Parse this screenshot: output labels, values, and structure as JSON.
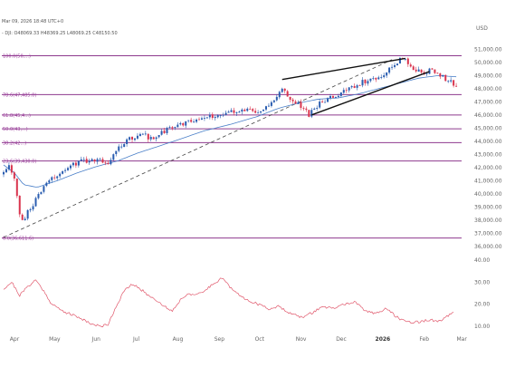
{
  "header": {
    "timestamp": "Mar 09, 2026 18:48 UTC+0",
    "ohlc": "- DJI: O48069.33 H48369.25 L48069.25 C48150.50"
  },
  "colors": {
    "up": "#2a5db0",
    "down": "#d9334d",
    "fib": "#8e3a8e",
    "ma": "#4a7fc8",
    "oscillator": "#e0566a",
    "wedge": "#111111",
    "trend": "#444444"
  },
  "chart_data": [
    {
      "type": "candlestick",
      "title": "",
      "ylabel": "USD",
      "ylim": [
        36000,
        51500
      ],
      "y_ticks": [
        51000,
        50000,
        49000,
        48000,
        47000,
        46000,
        45000,
        44000,
        43000,
        42000,
        41000,
        40000,
        39000,
        38000,
        37000,
        36000
      ],
      "y_tick_labels": [
        "51,000.00",
        "50,000.00",
        "49,000.00",
        "48,000.00",
        "47,000.00",
        "46,000.00",
        "45,000.00",
        "44,000.00",
        "43,000.00",
        "42,000.00",
        "41,000.00",
        "40,000.00",
        "39,000.00",
        "38,000.00",
        "37,000.00",
        "36,000.00"
      ],
      "x_labels": [
        {
          "label": "Apr",
          "day": 0
        },
        {
          "label": "May",
          "day": 30
        },
        {
          "label": "Jun",
          "day": 61
        },
        {
          "label": "Jul",
          "day": 91
        },
        {
          "label": "Aug",
          "day": 122
        },
        {
          "label": "Sep",
          "day": 153
        },
        {
          "label": "Oct",
          "day": 183
        },
        {
          "label": "Nov",
          "day": 214
        },
        {
          "label": "Dec",
          "day": 244
        },
        {
          "label": "2026",
          "day": 275,
          "bold": true
        },
        {
          "label": "Feb",
          "day": 306
        },
        {
          "label": "Mar",
          "day": 334
        }
      ],
      "fib_levels": [
        {
          "label": "100.0(50,...)",
          "value": 50500
        },
        {
          "label": "78.6(47,485.0)",
          "value": 47550
        },
        {
          "label": "61.8(45,4...)",
          "value": 46000
        },
        {
          "label": "50.0(43,...)",
          "value": 44950
        },
        {
          "label": "38.2(42...)",
          "value": 43900
        },
        {
          "label": "23.6(39,430.0)",
          "value": 42500
        },
        {
          "label": "0.0(36,611.6)",
          "value": 36650
        }
      ],
      "trend_line": [
        [
          0,
          36700
        ],
        [
          290,
          50200
        ]
      ],
      "wedge_upper": [
        [
          208,
          48700
        ],
        [
          300,
          50300
        ]
      ],
      "wedge_lower": [
        [
          230,
          46000
        ],
        [
          318,
          49300
        ]
      ],
      "ma_keypoints": [
        [
          0,
          42200
        ],
        [
          8,
          41600
        ],
        [
          15,
          40700
        ],
        [
          25,
          40500
        ],
        [
          40,
          41000
        ],
        [
          55,
          41600
        ],
        [
          70,
          42100
        ],
        [
          85,
          42500
        ],
        [
          100,
          43100
        ],
        [
          115,
          43600
        ],
        [
          130,
          44100
        ],
        [
          150,
          44800
        ],
        [
          170,
          45300
        ],
        [
          190,
          45900
        ],
        [
          205,
          46500
        ],
        [
          220,
          46900
        ],
        [
          235,
          47200
        ],
        [
          250,
          47300
        ],
        [
          265,
          47600
        ],
        [
          280,
          48000
        ],
        [
          295,
          48400
        ],
        [
          310,
          48800
        ],
        [
          325,
          49000
        ],
        [
          338,
          48900
        ]
      ],
      "price_keypoints": [
        [
          0,
          41500
        ],
        [
          4,
          42000
        ],
        [
          8,
          41200
        ],
        [
          12,
          38500
        ],
        [
          15,
          37800
        ],
        [
          18,
          38600
        ],
        [
          24,
          39500
        ],
        [
          30,
          40500
        ],
        [
          40,
          41500
        ],
        [
          50,
          42200
        ],
        [
          60,
          42500
        ],
        [
          70,
          42700
        ],
        [
          78,
          42400
        ],
        [
          85,
          43500
        ],
        [
          95,
          44200
        ],
        [
          105,
          44500
        ],
        [
          112,
          44100
        ],
        [
          120,
          44800
        ],
        [
          130,
          45200
        ],
        [
          140,
          45600
        ],
        [
          150,
          45800
        ],
        [
          160,
          46000
        ],
        [
          170,
          46200
        ],
        [
          180,
          46400
        ],
        [
          190,
          46100
        ],
        [
          200,
          47000
        ],
        [
          208,
          48000
        ],
        [
          214,
          47300
        ],
        [
          220,
          46800
        ],
        [
          228,
          46000
        ],
        [
          235,
          46800
        ],
        [
          245,
          47300
        ],
        [
          255,
          47800
        ],
        [
          265,
          48400
        ],
        [
          275,
          48700
        ],
        [
          285,
          49200
        ],
        [
          292,
          49800
        ],
        [
          298,
          50400
        ],
        [
          304,
          49600
        ],
        [
          312,
          49200
        ],
        [
          320,
          49400
        ],
        [
          328,
          48900
        ],
        [
          335,
          48400
        ],
        [
          338,
          48100
        ]
      ]
    },
    {
      "type": "line",
      "title": "",
      "ylim": [
        8,
        42
      ],
      "y_ticks": [
        40,
        30,
        20,
        10
      ],
      "y_tick_labels": [
        "40.00",
        "30.00",
        "20.00",
        "10.00"
      ],
      "keypoints": [
        [
          0,
          27
        ],
        [
          6,
          30
        ],
        [
          12,
          24
        ],
        [
          18,
          28
        ],
        [
          24,
          31
        ],
        [
          30,
          26
        ],
        [
          36,
          20
        ],
        [
          44,
          17
        ],
        [
          52,
          15
        ],
        [
          60,
          13
        ],
        [
          66,
          11
        ],
        [
          72,
          10
        ],
        [
          78,
          11
        ],
        [
          84,
          19
        ],
        [
          90,
          26
        ],
        [
          96,
          29
        ],
        [
          102,
          27
        ],
        [
          108,
          24
        ],
        [
          114,
          22
        ],
        [
          120,
          19
        ],
        [
          126,
          17
        ],
        [
          132,
          22
        ],
        [
          138,
          25
        ],
        [
          144,
          24
        ],
        [
          150,
          26
        ],
        [
          158,
          30
        ],
        [
          164,
          32
        ],
        [
          170,
          27
        ],
        [
          176,
          24
        ],
        [
          182,
          22
        ],
        [
          190,
          20
        ],
        [
          198,
          18
        ],
        [
          206,
          19
        ],
        [
          214,
          16
        ],
        [
          222,
          14
        ],
        [
          230,
          16
        ],
        [
          238,
          19
        ],
        [
          246,
          18
        ],
        [
          254,
          20
        ],
        [
          262,
          21
        ],
        [
          270,
          17
        ],
        [
          278,
          16
        ],
        [
          286,
          18
        ],
        [
          294,
          14
        ],
        [
          302,
          12
        ],
        [
          310,
          12
        ],
        [
          318,
          13
        ],
        [
          324,
          12
        ],
        [
          330,
          14
        ],
        [
          336,
          16
        ]
      ]
    }
  ]
}
